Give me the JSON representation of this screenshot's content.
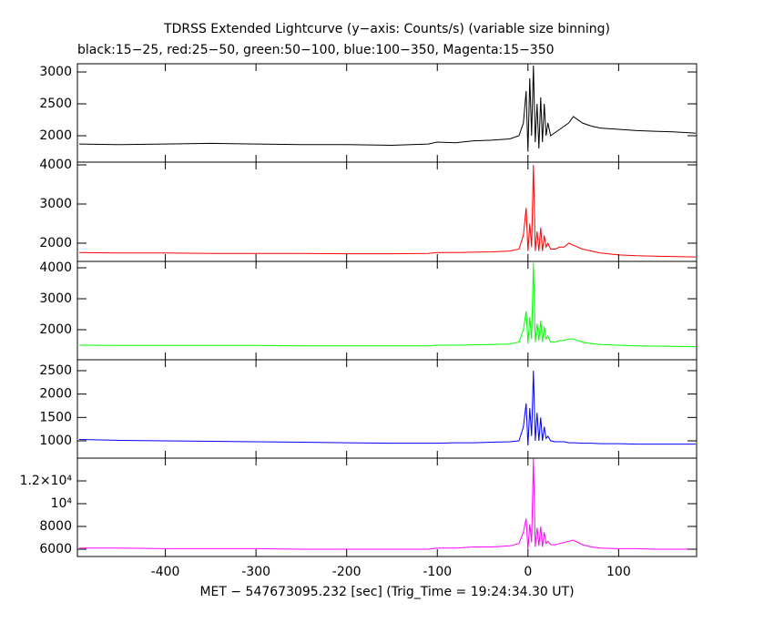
{
  "chart_data": [
    {
      "type": "line",
      "title": "TDRSS Extended Lightcurve (y−axis: Counts/s) (variable size binning)",
      "subtitle": "black:15−25, red:25−50, green:50−100, blue:100−350, Magenta:15−350",
      "x": [
        -495,
        -450,
        -400,
        -350,
        -300,
        -250,
        -200,
        -150,
        -110,
        -100,
        -80,
        -60,
        -40,
        -20,
        -10,
        -5,
        -2,
        0,
        2,
        4,
        6,
        8,
        10,
        12,
        14,
        16,
        18,
        20,
        22,
        25,
        30,
        35,
        40,
        45,
        50,
        60,
        70,
        80,
        100,
        120,
        140,
        160,
        185
      ],
      "series": [
        {
          "color": "#000000",
          "values": [
            1870,
            1860,
            1870,
            1880,
            1870,
            1860,
            1860,
            1850,
            1870,
            1900,
            1890,
            1920,
            1930,
            1950,
            2000,
            2200,
            2700,
            1750,
            2900,
            2000,
            3100,
            1900,
            2500,
            1800,
            2600,
            1900,
            2500,
            2000,
            2200,
            2000,
            2050,
            2100,
            2150,
            2200,
            2300,
            2200,
            2150,
            2120,
            2100,
            2080,
            2070,
            2060,
            2040
          ]
        }
      ],
      "xlim": [
        -497,
        186
      ],
      "xticks": [
        -400,
        -300,
        -200,
        -100,
        0,
        100
      ],
      "ylim": [
        1586,
        3129
      ],
      "yticks": [
        2000,
        2500,
        3000
      ]
    },
    {
      "type": "line",
      "x": [
        -495,
        -450,
        -400,
        -350,
        -300,
        -250,
        -200,
        -150,
        -110,
        -100,
        -80,
        -60,
        -40,
        -20,
        -10,
        -5,
        -2,
        0,
        2,
        4,
        6,
        8,
        10,
        12,
        14,
        16,
        18,
        20,
        22,
        25,
        30,
        35,
        40,
        45,
        50,
        60,
        70,
        80,
        100,
        120,
        140,
        160,
        185
      ],
      "series": [
        {
          "color": "#ff0000",
          "values": [
            1760,
            1750,
            1750,
            1740,
            1740,
            1740,
            1730,
            1730,
            1740,
            1760,
            1760,
            1770,
            1780,
            1800,
            1850,
            2200,
            2900,
            1800,
            2500,
            1900,
            4000,
            1800,
            2300,
            1800,
            2400,
            1800,
            2200,
            1900,
            2000,
            1850,
            1850,
            1900,
            1900,
            2000,
            1950,
            1850,
            1800,
            1750,
            1700,
            1680,
            1670,
            1660,
            1650
          ]
        }
      ],
      "xlim": [
        -497,
        186
      ],
      "xticks": [
        -400,
        -300,
        -200,
        -100,
        0,
        100
      ],
      "ylim": [
        1535,
        4070
      ],
      "yticks": [
        2000,
        3000,
        4000
      ]
    },
    {
      "type": "line",
      "x": [
        -495,
        -450,
        -400,
        -350,
        -300,
        -250,
        -200,
        -150,
        -110,
        -100,
        -80,
        -60,
        -40,
        -20,
        -10,
        -5,
        -2,
        0,
        2,
        4,
        6,
        8,
        10,
        12,
        14,
        16,
        18,
        20,
        22,
        25,
        30,
        35,
        40,
        45,
        50,
        60,
        70,
        80,
        100,
        120,
        140,
        160,
        185
      ],
      "series": [
        {
          "color": "#00ff00",
          "values": [
            1500,
            1490,
            1490,
            1490,
            1490,
            1480,
            1480,
            1480,
            1480,
            1500,
            1500,
            1510,
            1520,
            1540,
            1600,
            2000,
            2600,
            1550,
            2400,
            1700,
            4150,
            1600,
            2200,
            1650,
            2300,
            1600,
            2100,
            1700,
            1800,
            1600,
            1600,
            1650,
            1650,
            1700,
            1700,
            1600,
            1550,
            1520,
            1500,
            1480,
            1470,
            1460,
            1450
          ]
        }
      ],
      "xlim": [
        -497,
        186
      ],
      "xticks": [
        -400,
        -300,
        -200,
        -100,
        0,
        100
      ],
      "ylim": [
        1029,
        4206
      ],
      "yticks": [
        2000,
        3000,
        4000
      ]
    },
    {
      "type": "line",
      "x": [
        -495,
        -450,
        -400,
        -350,
        -300,
        -250,
        -200,
        -150,
        -110,
        -100,
        -80,
        -60,
        -40,
        -20,
        -10,
        -5,
        -2,
        0,
        2,
        4,
        6,
        8,
        10,
        12,
        14,
        16,
        18,
        20,
        22,
        25,
        30,
        35,
        40,
        45,
        50,
        60,
        70,
        80,
        100,
        120,
        140,
        160,
        185
      ],
      "series": [
        {
          "color": "#0000ff",
          "values": [
            1030,
            1010,
            1000,
            990,
            980,
            970,
            960,
            950,
            950,
            950,
            960,
            960,
            970,
            980,
            1000,
            1300,
            1800,
            900,
            1700,
            1100,
            2500,
            1000,
            1600,
            1000,
            1500,
            1000,
            1300,
            1050,
            1100,
            1000,
            980,
            980,
            980,
            960,
            960,
            950,
            950,
            940,
            940,
            930,
            930,
            930,
            930
          ]
        }
      ],
      "xlim": [
        -497,
        186
      ],
      "xticks": [
        -400,
        -300,
        -200,
        -100,
        0,
        100
      ],
      "ylim": [
        630,
        2733
      ],
      "yticks": [
        1000,
        1500,
        2000,
        2500
      ]
    },
    {
      "type": "line",
      "xlabel": "MET − 547673095.232 [sec] (Trig_Time = 19:24:34.30 UT)",
      "x": [
        -495,
        -450,
        -400,
        -350,
        -300,
        -250,
        -200,
        -150,
        -110,
        -100,
        -80,
        -60,
        -40,
        -20,
        -10,
        -5,
        -2,
        0,
        2,
        4,
        6,
        8,
        10,
        12,
        14,
        16,
        18,
        20,
        22,
        25,
        30,
        35,
        40,
        45,
        50,
        60,
        70,
        80,
        100,
        120,
        140,
        160,
        185
      ],
      "series": [
        {
          "color": "#ff00ff",
          "values": [
            6100,
            6100,
            6050,
            6050,
            6050,
            6000,
            6000,
            6000,
            6000,
            6100,
            6100,
            6200,
            6200,
            6300,
            6500,
            7500,
            8700,
            6000,
            8200,
            6600,
            14000,
            6200,
            7900,
            6300,
            8000,
            6200,
            7500,
            6500,
            6700,
            6400,
            6400,
            6500,
            6600,
            6700,
            6800,
            6400,
            6200,
            6100,
            6050,
            6050,
            6000,
            6000,
            6000
          ]
        }
      ],
      "xlim": [
        -497,
        186
      ],
      "xticks": [
        -400,
        -300,
        -200,
        -100,
        0,
        100
      ],
      "ylim": [
        5360,
        14000
      ],
      "yticks": [
        6000,
        8000,
        {
          "value": 10000,
          "label": "10⁴"
        },
        {
          "value": 12000,
          "label": "1.2×10⁴"
        }
      ]
    }
  ]
}
